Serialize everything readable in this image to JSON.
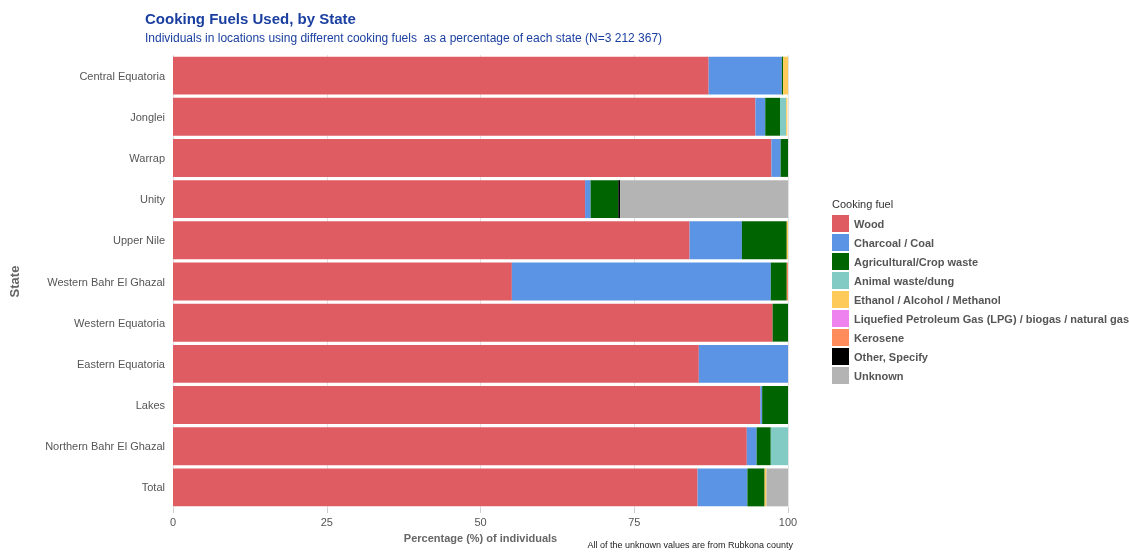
{
  "chart_data": {
    "type": "bar",
    "orientation": "horizontal",
    "stacked": true,
    "title": "Cooking Fuels Used, by State",
    "subtitle": "Individuals in locations using different cooking fuels  as a percentage of each state (N=3 212 367)",
    "xlabel": "Percentage (%) of individuals",
    "ylabel": "State",
    "legend_title": "Cooking fuel",
    "annotations": [
      "All of the unknown values are from Rubkona county"
    ],
    "categories": [
      "Central Equatoria",
      "Jonglei",
      "Warrap",
      "Unity",
      "Upper Nile",
      "Western Bahr El Ghazal",
      "Western Equatoria",
      "Eastern Equatoria",
      "Lakes",
      "Northern Bahr El Ghazal",
      "Total"
    ],
    "series": [
      {
        "name": "Wood",
        "color": "#df5c63",
        "values": [
          87.1,
          94.7,
          97.3,
          67.0,
          84.0,
          55.1,
          97.5,
          85.5,
          95.5,
          93.3,
          85.3
        ]
      },
      {
        "name": "Charcoal / Coal",
        "color": "#5b93e5",
        "values": [
          11.9,
          1.6,
          1.5,
          0.9,
          8.5,
          42.1,
          0,
          14.5,
          0.3,
          1.6,
          8.1
        ]
      },
      {
        "name": "Agricultural/Crop waste",
        "color": "#006400",
        "values": [
          0.2,
          2.4,
          1.2,
          4.5,
          7.3,
          2.6,
          2.5,
          0,
          4.2,
          2.3,
          2.8
        ]
      },
      {
        "name": "Animal waste/dung",
        "color": "#82cbc4",
        "values": [
          0,
          1.0,
          0,
          0,
          0,
          0,
          0,
          0,
          0,
          2.8,
          0
        ]
      },
      {
        "name": "Ethanol / Alcohol / Methanol",
        "color": "#fecb5b",
        "values": [
          0.8,
          0.2,
          0,
          0,
          0.2,
          0,
          0,
          0,
          0,
          0,
          0.3
        ]
      },
      {
        "name": "Liquefied Petroleum Gas (LPG) / biogas / natural gas",
        "color": "#ee82ee",
        "values": [
          0,
          0,
          0,
          0,
          0,
          0,
          0,
          0,
          0,
          0,
          0
        ]
      },
      {
        "name": "Kerosene",
        "color": "#ff8c5a",
        "values": [
          0,
          0,
          0,
          0,
          0,
          0.2,
          0,
          0,
          0,
          0,
          0
        ]
      },
      {
        "name": "Other, Specify",
        "color": "#000000",
        "values": [
          0,
          0,
          0,
          0.3,
          0,
          0,
          0,
          0,
          0,
          0,
          0
        ]
      },
      {
        "name": "Unknown",
        "color": "#b4b4b4",
        "values": [
          0,
          0,
          0,
          27.3,
          0,
          0,
          0,
          0,
          0,
          0,
          3.5
        ]
      }
    ],
    "xlim": [
      0,
      100
    ],
    "xticks": [
      0,
      25,
      50,
      75,
      100
    ],
    "grid": "x",
    "legend": "right"
  }
}
